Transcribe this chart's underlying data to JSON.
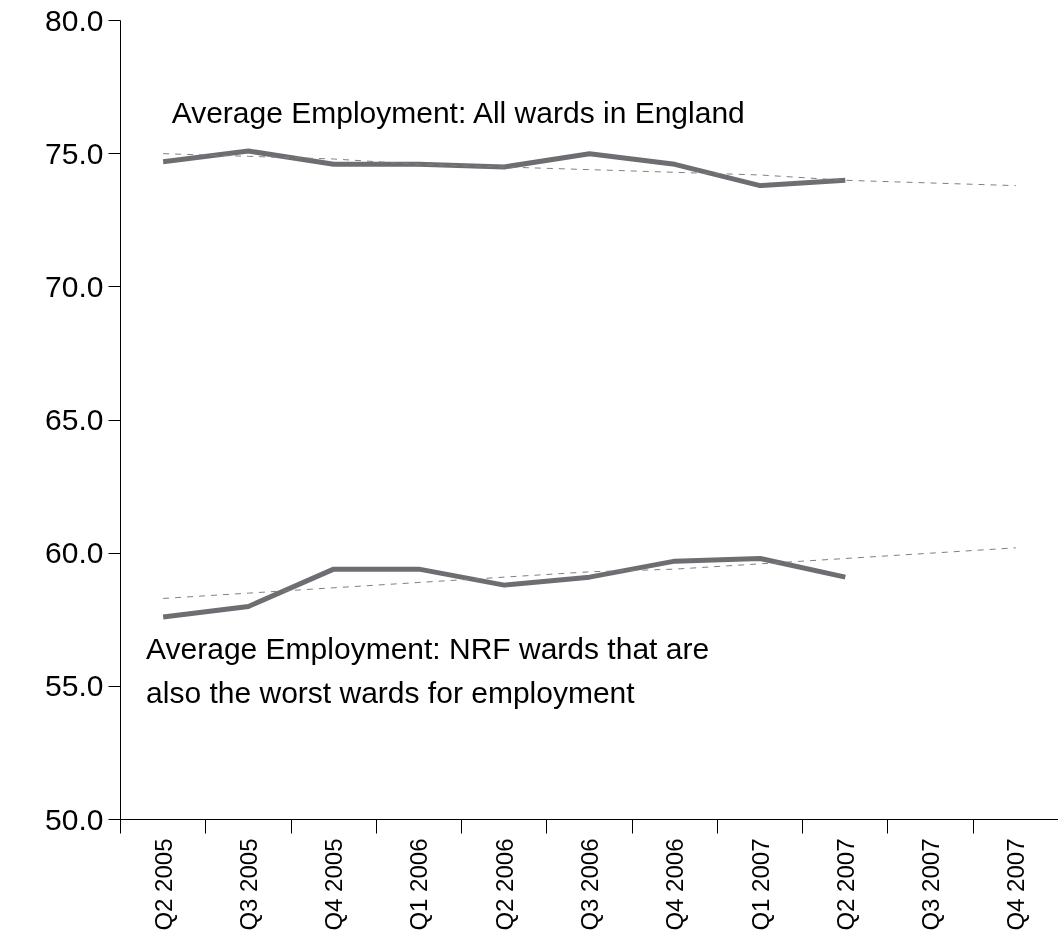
{
  "chart_data": {
    "type": "line",
    "categories": [
      "Q2 2005",
      "Q3 2005",
      "Q4 2005",
      "Q1 2006",
      "Q2 2006",
      "Q3 2006",
      "Q4 2006",
      "Q1 2007",
      "Q2 2007",
      "Q3 2007",
      "Q4 2007"
    ],
    "series": [
      {
        "name": "Average Employment: All wards in England",
        "color": "#6d6e71",
        "values": [
          74.7,
          75.1,
          74.6,
          74.6,
          74.5,
          75.0,
          74.6,
          73.8,
          74.0,
          null,
          null
        ]
      },
      {
        "name": "Average Employment: NRF wards that are also the worst wards for employment",
        "color": "#6d6e71",
        "values": [
          57.6,
          58.0,
          59.4,
          59.4,
          58.8,
          59.1,
          59.7,
          59.8,
          59.1,
          null,
          null
        ]
      },
      {
        "type": "line",
        "line_style": "dashed",
        "color": "#808080",
        "values": [
          75.0,
          74.9,
          74.8,
          74.6,
          74.5,
          74.4,
          74.3,
          74.2,
          74.0,
          73.9,
          73.8
        ]
      },
      {
        "type": "line",
        "line_style": "dashed",
        "color": "#808080",
        "values": [
          58.3,
          58.5,
          58.7,
          58.9,
          59.1,
          59.3,
          59.4,
          59.6,
          59.8,
          60.0,
          60.2
        ]
      }
    ],
    "ylim": [
      50,
      80
    ],
    "yticks": [
      {
        "value": 50,
        "label": "50.0"
      },
      {
        "value": 55,
        "label": "55.0"
      },
      {
        "value": 60,
        "label": "60.0"
      },
      {
        "value": 65,
        "label": "65.0"
      },
      {
        "value": 70,
        "label": "70.0"
      },
      {
        "value": 75,
        "label": "75.0"
      },
      {
        "value": 80,
        "label": "80.0"
      }
    ],
    "grid": false,
    "legend": false,
    "line_style": "solid",
    "marker": "none"
  }
}
